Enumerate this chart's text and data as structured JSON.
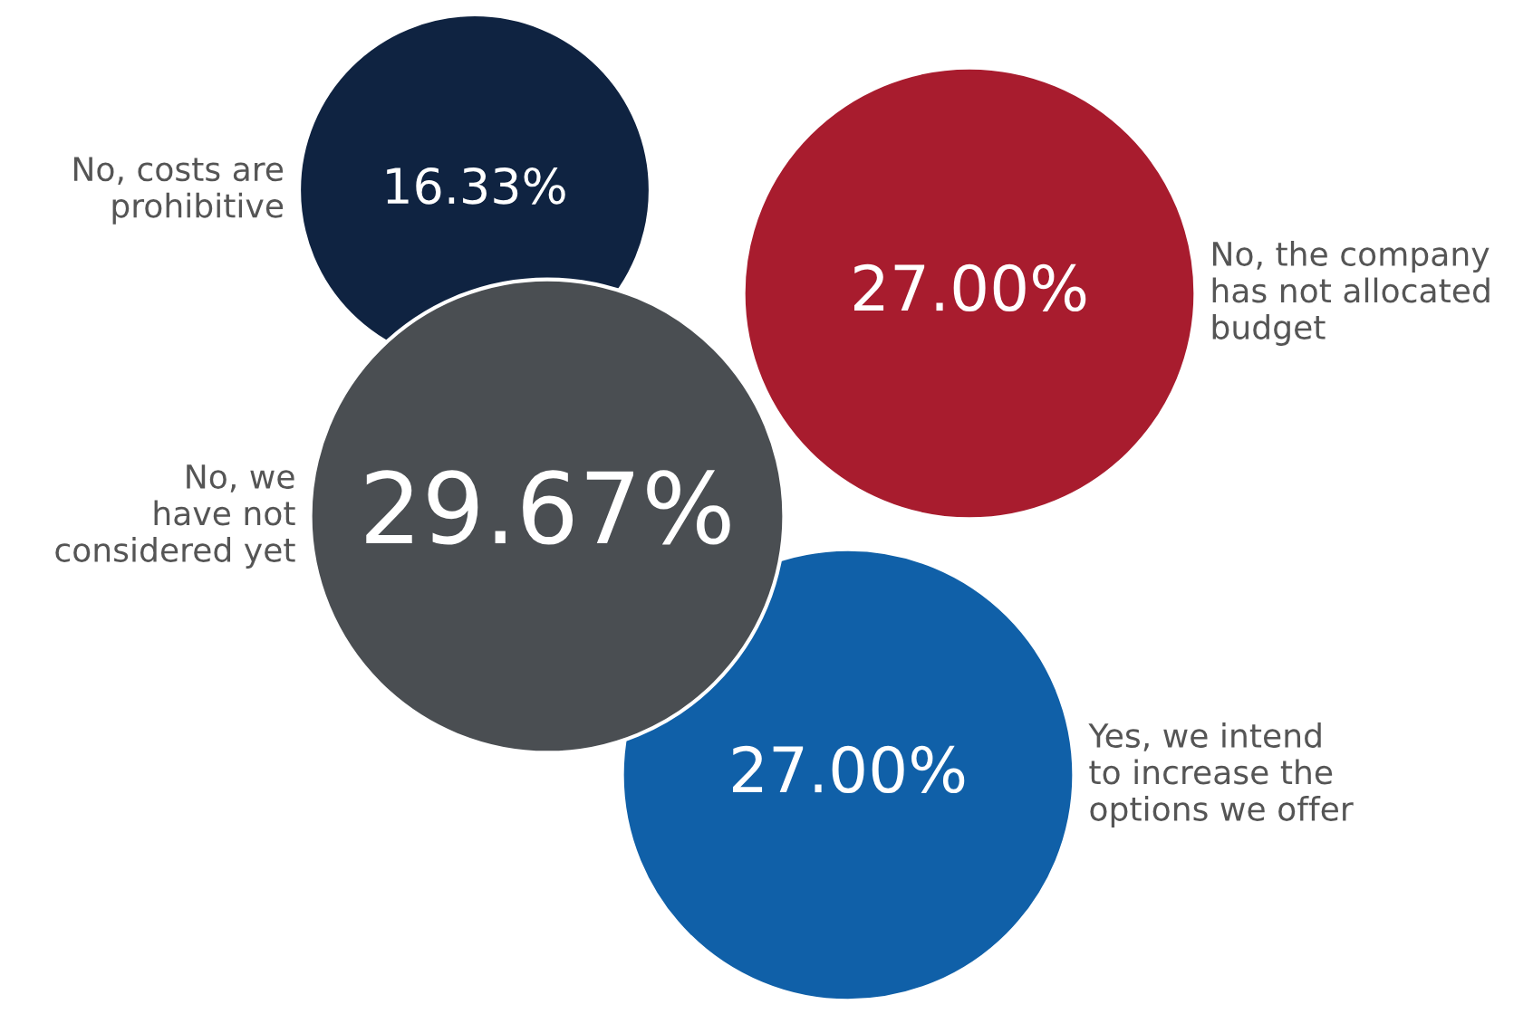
{
  "chart_data": {
    "type": "other",
    "categories": [
      "No, costs are\nprohibitive",
      "No, the company\nhas not allocated\nbudget",
      "No, we\nhave not\nconsidered yet",
      "Yes, we intend\nto increase the\noptions we offer"
    ],
    "values": [
      16.33,
      27.0,
      29.67,
      27.0
    ],
    "value_labels": [
      "16.33%",
      "27.00%",
      "29.67%",
      "27.00%"
    ],
    "colors": [
      "#0f2341",
      "#a81c2e",
      "#4a4e52",
      "#1060a8"
    ],
    "data_labels": true
  }
}
